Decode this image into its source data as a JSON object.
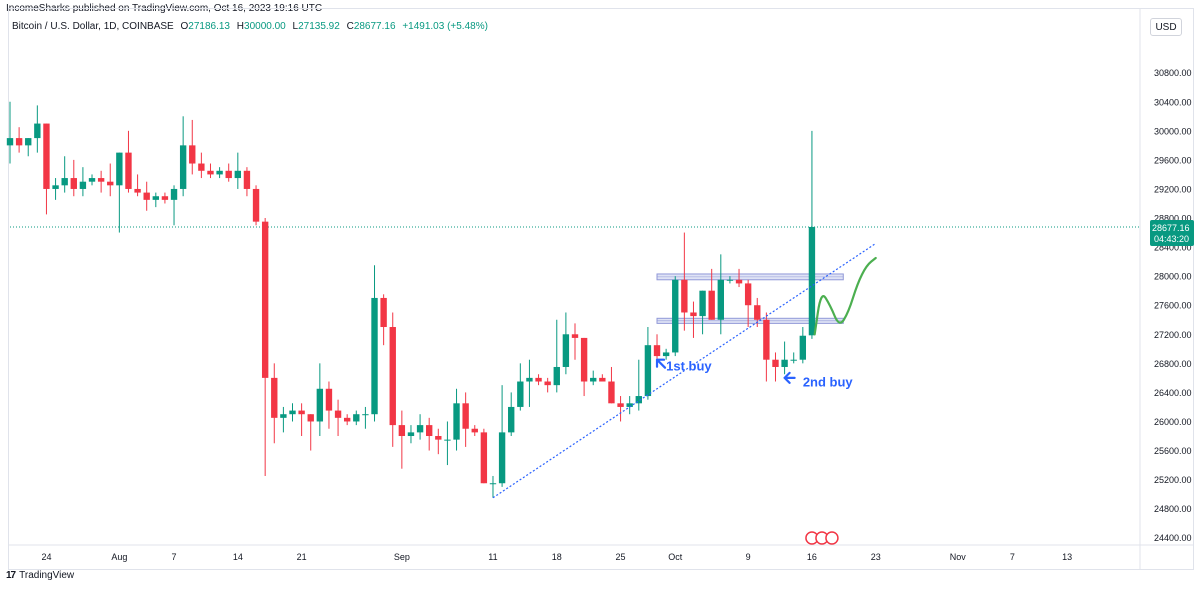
{
  "header": {
    "caption": "IncomeSharks published on TradingView.com, Oct 16, 2023 19:16 UTC",
    "symbol": "Bitcoin / U.S. Dollar, 1D, COINBASE",
    "ohlc": [
      {
        "k": "O",
        "v": "27186.13"
      },
      {
        "k": "H",
        "v": "30000.00"
      },
      {
        "k": "L",
        "v": "27135.92"
      },
      {
        "k": "C",
        "v": "28677.16"
      }
    ],
    "change": "+1491.03 (+5.48%)",
    "currency": "USD"
  },
  "footer": {
    "brand": "TradingView",
    "logo": "tradingview-logo-icon"
  },
  "colors": {
    "up": "#089981",
    "down": "#f23645",
    "annotation": "#2962ff",
    "curve": "#4caf50",
    "zone": "#9098d8",
    "zone_fill": "#dfe3f5"
  },
  "chart_data": {
    "type": "candlestick",
    "ylim": [
      24300,
      31250
    ],
    "yticks": [
      "30800.00",
      "30400.00",
      "30000.00",
      "29600.00",
      "29200.00",
      "28800.00",
      "28400.00",
      "28000.00",
      "27600.00",
      "27200.00",
      "26800.00",
      "26400.00",
      "26000.00",
      "25600.00",
      "25200.00",
      "24800.00",
      "24400.00"
    ],
    "xticks": [
      {
        "label": "24",
        "date": "2023-07-24"
      },
      {
        "label": "Aug",
        "date": "2023-08-01"
      },
      {
        "label": "7",
        "date": "2023-08-07"
      },
      {
        "label": "14",
        "date": "2023-08-14"
      },
      {
        "label": "21",
        "date": "2023-08-21"
      },
      {
        "label": "Sep",
        "date": "2023-09-01"
      },
      {
        "label": "11",
        "date": "2023-09-11"
      },
      {
        "label": "18",
        "date": "2023-09-18"
      },
      {
        "label": "25",
        "date": "2023-09-25"
      },
      {
        "label": "Oct",
        "date": "2023-10-01"
      },
      {
        "label": "9",
        "date": "2023-10-09"
      },
      {
        "label": "16",
        "date": "2023-10-16"
      },
      {
        "label": "23",
        "date": "2023-10-23"
      },
      {
        "label": "Nov",
        "date": "2023-11-01"
      },
      {
        "label": "7",
        "date": "2023-11-07"
      },
      {
        "label": "13",
        "date": "2023-11-13"
      }
    ],
    "x_range": [
      "2023-07-20",
      "2023-11-21"
    ],
    "last_price": {
      "value": 28677.16,
      "label": "28677.16",
      "countdown": "04:43:20"
    },
    "candles": [
      {
        "d": "2023-07-20",
        "o": 29800,
        "h": 30400,
        "l": 29550,
        "c": 29900
      },
      {
        "d": "2023-07-21",
        "o": 29900,
        "h": 30050,
        "l": 29700,
        "c": 29800
      },
      {
        "d": "2023-07-22",
        "o": 29800,
        "h": 29900,
        "l": 29650,
        "c": 29900
      },
      {
        "d": "2023-07-23",
        "o": 29900,
        "h": 30350,
        "l": 29700,
        "c": 30100
      },
      {
        "d": "2023-07-24",
        "o": 30100,
        "h": 30100,
        "l": 28850,
        "c": 29200
      },
      {
        "d": "2023-07-25",
        "o": 29200,
        "h": 29350,
        "l": 29050,
        "c": 29250
      },
      {
        "d": "2023-07-26",
        "o": 29250,
        "h": 29650,
        "l": 29150,
        "c": 29350
      },
      {
        "d": "2023-07-27",
        "o": 29350,
        "h": 29600,
        "l": 29100,
        "c": 29200
      },
      {
        "d": "2023-07-28",
        "o": 29200,
        "h": 29500,
        "l": 29100,
        "c": 29300
      },
      {
        "d": "2023-07-29",
        "o": 29300,
        "h": 29400,
        "l": 29250,
        "c": 29350
      },
      {
        "d": "2023-07-30",
        "o": 29350,
        "h": 29450,
        "l": 29150,
        "c": 29300
      },
      {
        "d": "2023-07-31",
        "o": 29300,
        "h": 29550,
        "l": 29100,
        "c": 29250
      },
      {
        "d": "2023-08-01",
        "o": 29250,
        "h": 29700,
        "l": 28600,
        "c": 29700
      },
      {
        "d": "2023-08-02",
        "o": 29700,
        "h": 30000,
        "l": 29150,
        "c": 29200
      },
      {
        "d": "2023-08-03",
        "o": 29200,
        "h": 29400,
        "l": 29100,
        "c": 29150
      },
      {
        "d": "2023-08-04",
        "o": 29150,
        "h": 29300,
        "l": 28900,
        "c": 29050
      },
      {
        "d": "2023-08-05",
        "o": 29050,
        "h": 29150,
        "l": 28950,
        "c": 29100
      },
      {
        "d": "2023-08-06",
        "o": 29100,
        "h": 29150,
        "l": 29000,
        "c": 29050
      },
      {
        "d": "2023-08-07",
        "o": 29050,
        "h": 29250,
        "l": 28700,
        "c": 29200
      },
      {
        "d": "2023-08-08",
        "o": 29200,
        "h": 30200,
        "l": 29100,
        "c": 29800
      },
      {
        "d": "2023-08-09",
        "o": 29800,
        "h": 30150,
        "l": 29400,
        "c": 29550
      },
      {
        "d": "2023-08-10",
        "o": 29550,
        "h": 29700,
        "l": 29350,
        "c": 29450
      },
      {
        "d": "2023-08-11",
        "o": 29450,
        "h": 29550,
        "l": 29350,
        "c": 29400
      },
      {
        "d": "2023-08-12",
        "o": 29400,
        "h": 29500,
        "l": 29350,
        "c": 29450
      },
      {
        "d": "2023-08-13",
        "o": 29450,
        "h": 29550,
        "l": 29300,
        "c": 29350
      },
      {
        "d": "2023-08-14",
        "o": 29350,
        "h": 29700,
        "l": 29200,
        "c": 29450
      },
      {
        "d": "2023-08-15",
        "o": 29450,
        "h": 29500,
        "l": 29100,
        "c": 29200
      },
      {
        "d": "2023-08-16",
        "o": 29200,
        "h": 29250,
        "l": 28700,
        "c": 28750
      },
      {
        "d": "2023-08-17",
        "o": 28750,
        "h": 28800,
        "l": 25250,
        "c": 26600
      },
      {
        "d": "2023-08-18",
        "o": 26600,
        "h": 26800,
        "l": 25700,
        "c": 26050
      },
      {
        "d": "2023-08-19",
        "o": 26050,
        "h": 26200,
        "l": 25850,
        "c": 26100
      },
      {
        "d": "2023-08-20",
        "o": 26100,
        "h": 26250,
        "l": 26000,
        "c": 26150
      },
      {
        "d": "2023-08-21",
        "o": 26150,
        "h": 26250,
        "l": 25800,
        "c": 26100
      },
      {
        "d": "2023-08-22",
        "o": 26100,
        "h": 26100,
        "l": 25600,
        "c": 26000
      },
      {
        "d": "2023-08-23",
        "o": 26000,
        "h": 26800,
        "l": 25800,
        "c": 26450
      },
      {
        "d": "2023-08-24",
        "o": 26450,
        "h": 26550,
        "l": 25900,
        "c": 26150
      },
      {
        "d": "2023-08-25",
        "o": 26150,
        "h": 26300,
        "l": 25800,
        "c": 26050
      },
      {
        "d": "2023-08-26",
        "o": 26050,
        "h": 26100,
        "l": 25950,
        "c": 26000
      },
      {
        "d": "2023-08-27",
        "o": 26000,
        "h": 26150,
        "l": 25950,
        "c": 26100
      },
      {
        "d": "2023-08-28",
        "o": 26100,
        "h": 26200,
        "l": 25900,
        "c": 26100
      },
      {
        "d": "2023-08-29",
        "o": 26100,
        "h": 28150,
        "l": 26000,
        "c": 27700
      },
      {
        "d": "2023-08-30",
        "o": 27700,
        "h": 27750,
        "l": 27050,
        "c": 27300
      },
      {
        "d": "2023-08-31",
        "o": 27300,
        "h": 27500,
        "l": 25650,
        "c": 25950
      },
      {
        "d": "2023-09-01",
        "o": 25950,
        "h": 26150,
        "l": 25350,
        "c": 25800
      },
      {
        "d": "2023-09-02",
        "o": 25800,
        "h": 25950,
        "l": 25700,
        "c": 25850
      },
      {
        "d": "2023-09-03",
        "o": 25850,
        "h": 26100,
        "l": 25750,
        "c": 25950
      },
      {
        "d": "2023-09-04",
        "o": 25950,
        "h": 26050,
        "l": 25600,
        "c": 25800
      },
      {
        "d": "2023-09-05",
        "o": 25800,
        "h": 25900,
        "l": 25550,
        "c": 25750
      },
      {
        "d": "2023-09-06",
        "o": 25750,
        "h": 26000,
        "l": 25400,
        "c": 25750
      },
      {
        "d": "2023-09-07",
        "o": 25750,
        "h": 26450,
        "l": 25600,
        "c": 26250
      },
      {
        "d": "2023-09-08",
        "o": 26250,
        "h": 26400,
        "l": 25650,
        "c": 25900
      },
      {
        "d": "2023-09-09",
        "o": 25900,
        "h": 25950,
        "l": 25800,
        "c": 25850
      },
      {
        "d": "2023-09-10",
        "o": 25850,
        "h": 25900,
        "l": 25150,
        "c": 25150
      },
      {
        "d": "2023-09-11",
        "o": 25150,
        "h": 25250,
        "l": 24950,
        "c": 25150
      },
      {
        "d": "2023-09-12",
        "o": 25150,
        "h": 26500,
        "l": 25100,
        "c": 25850
      },
      {
        "d": "2023-09-13",
        "o": 25850,
        "h": 26400,
        "l": 25800,
        "c": 26200
      },
      {
        "d": "2023-09-14",
        "o": 26200,
        "h": 26800,
        "l": 26150,
        "c": 26550
      },
      {
        "d": "2023-09-15",
        "o": 26550,
        "h": 26850,
        "l": 26200,
        "c": 26600
      },
      {
        "d": "2023-09-16",
        "o": 26600,
        "h": 26650,
        "l": 26500,
        "c": 26550
      },
      {
        "d": "2023-09-17",
        "o": 26550,
        "h": 26600,
        "l": 26400,
        "c": 26500
      },
      {
        "d": "2023-09-18",
        "o": 26500,
        "h": 27400,
        "l": 26400,
        "c": 26750
      },
      {
        "d": "2023-09-19",
        "o": 26750,
        "h": 27500,
        "l": 26650,
        "c": 27200
      },
      {
        "d": "2023-09-20",
        "o": 27200,
        "h": 27350,
        "l": 26850,
        "c": 27150
      },
      {
        "d": "2023-09-21",
        "o": 27150,
        "h": 27150,
        "l": 26350,
        "c": 26550
      },
      {
        "d": "2023-09-22",
        "o": 26550,
        "h": 26700,
        "l": 26500,
        "c": 26600
      },
      {
        "d": "2023-09-23",
        "o": 26600,
        "h": 26650,
        "l": 26550,
        "c": 26550
      },
      {
        "d": "2023-09-24",
        "o": 26550,
        "h": 26750,
        "l": 26250,
        "c": 26250
      },
      {
        "d": "2023-09-25",
        "o": 26250,
        "h": 26350,
        "l": 26000,
        "c": 26200
      },
      {
        "d": "2023-09-26",
        "o": 26200,
        "h": 26350,
        "l": 26100,
        "c": 26250
      },
      {
        "d": "2023-09-27",
        "o": 26250,
        "h": 26850,
        "l": 26150,
        "c": 26350
      },
      {
        "d": "2023-09-28",
        "o": 26350,
        "h": 27300,
        "l": 26300,
        "c": 27050
      },
      {
        "d": "2023-09-29",
        "o": 27050,
        "h": 27200,
        "l": 26800,
        "c": 26900
      },
      {
        "d": "2023-09-30",
        "o": 26900,
        "h": 27000,
        "l": 26850,
        "c": 26950
      },
      {
        "d": "2023-10-01",
        "o": 26950,
        "h": 28000,
        "l": 26900,
        "c": 27950
      },
      {
        "d": "2023-10-02",
        "o": 27950,
        "h": 28600,
        "l": 27250,
        "c": 27500
      },
      {
        "d": "2023-10-03",
        "o": 27500,
        "h": 27650,
        "l": 27150,
        "c": 27450
      },
      {
        "d": "2023-10-04",
        "o": 27450,
        "h": 27800,
        "l": 27200,
        "c": 27800
      },
      {
        "d": "2023-10-05",
        "o": 27800,
        "h": 28100,
        "l": 27400,
        "c": 27400
      },
      {
        "d": "2023-10-06",
        "o": 27400,
        "h": 28300,
        "l": 27200,
        "c": 27950
      },
      {
        "d": "2023-10-07",
        "o": 27950,
        "h": 28000,
        "l": 27900,
        "c": 27950
      },
      {
        "d": "2023-10-08",
        "o": 27950,
        "h": 28100,
        "l": 27850,
        "c": 27900
      },
      {
        "d": "2023-10-09",
        "o": 27900,
        "h": 27950,
        "l": 27300,
        "c": 27600
      },
      {
        "d": "2023-10-10",
        "o": 27600,
        "h": 27700,
        "l": 27300,
        "c": 27400
      },
      {
        "d": "2023-10-11",
        "o": 27400,
        "h": 27500,
        "l": 26550,
        "c": 26850
      },
      {
        "d": "2023-10-12",
        "o": 26850,
        "h": 26950,
        "l": 26550,
        "c": 26750
      },
      {
        "d": "2023-10-13",
        "o": 26750,
        "h": 27100,
        "l": 26650,
        "c": 26850
      },
      {
        "d": "2023-10-14",
        "o": 26850,
        "h": 26950,
        "l": 26800,
        "c": 26850
      },
      {
        "d": "2023-10-15",
        "o": 26850,
        "h": 27300,
        "l": 26800,
        "c": 27180
      },
      {
        "d": "2023-10-16",
        "o": 27186,
        "h": 30000,
        "l": 27136,
        "c": 28677
      }
    ],
    "trendline": [
      {
        "d": "2023-09-11",
        "y": 24950
      },
      {
        "d": "2023-10-23",
        "y": 28450
      }
    ],
    "zones": [
      {
        "from": "2023-09-29",
        "to": "2023-10-19",
        "y1": 27950,
        "y2": 28030
      },
      {
        "from": "2023-09-29",
        "to": "2023-10-19",
        "y1": 27350,
        "y2": 27420
      }
    ],
    "projection": [
      {
        "d": "2023-10-16.3",
        "y": 27200
      },
      {
        "d": "2023-10-17",
        "y": 27800
      },
      {
        "d": "2023-10-18",
        "y": 27600
      },
      {
        "d": "2023-10-19",
        "y": 27300
      },
      {
        "d": "2023-10-20",
        "y": 27500
      },
      {
        "d": "2023-10-21",
        "y": 27900
      },
      {
        "d": "2023-10-22",
        "y": 28150
      },
      {
        "d": "2023-10-23",
        "y": 28250
      }
    ],
    "annotations": [
      {
        "text": "1st buy",
        "arrow_date": "2023-09-29",
        "arrow_y": 26850,
        "text_date": "2023-09-30",
        "text_y": 26770
      },
      {
        "text": "2nd buy",
        "arrow_date": "2023-10-13",
        "arrow_y": 26600,
        "text_date": "2023-10-15",
        "text_y": 26550
      }
    ],
    "events": {
      "date": "2023-10-16",
      "count": 3
    }
  }
}
